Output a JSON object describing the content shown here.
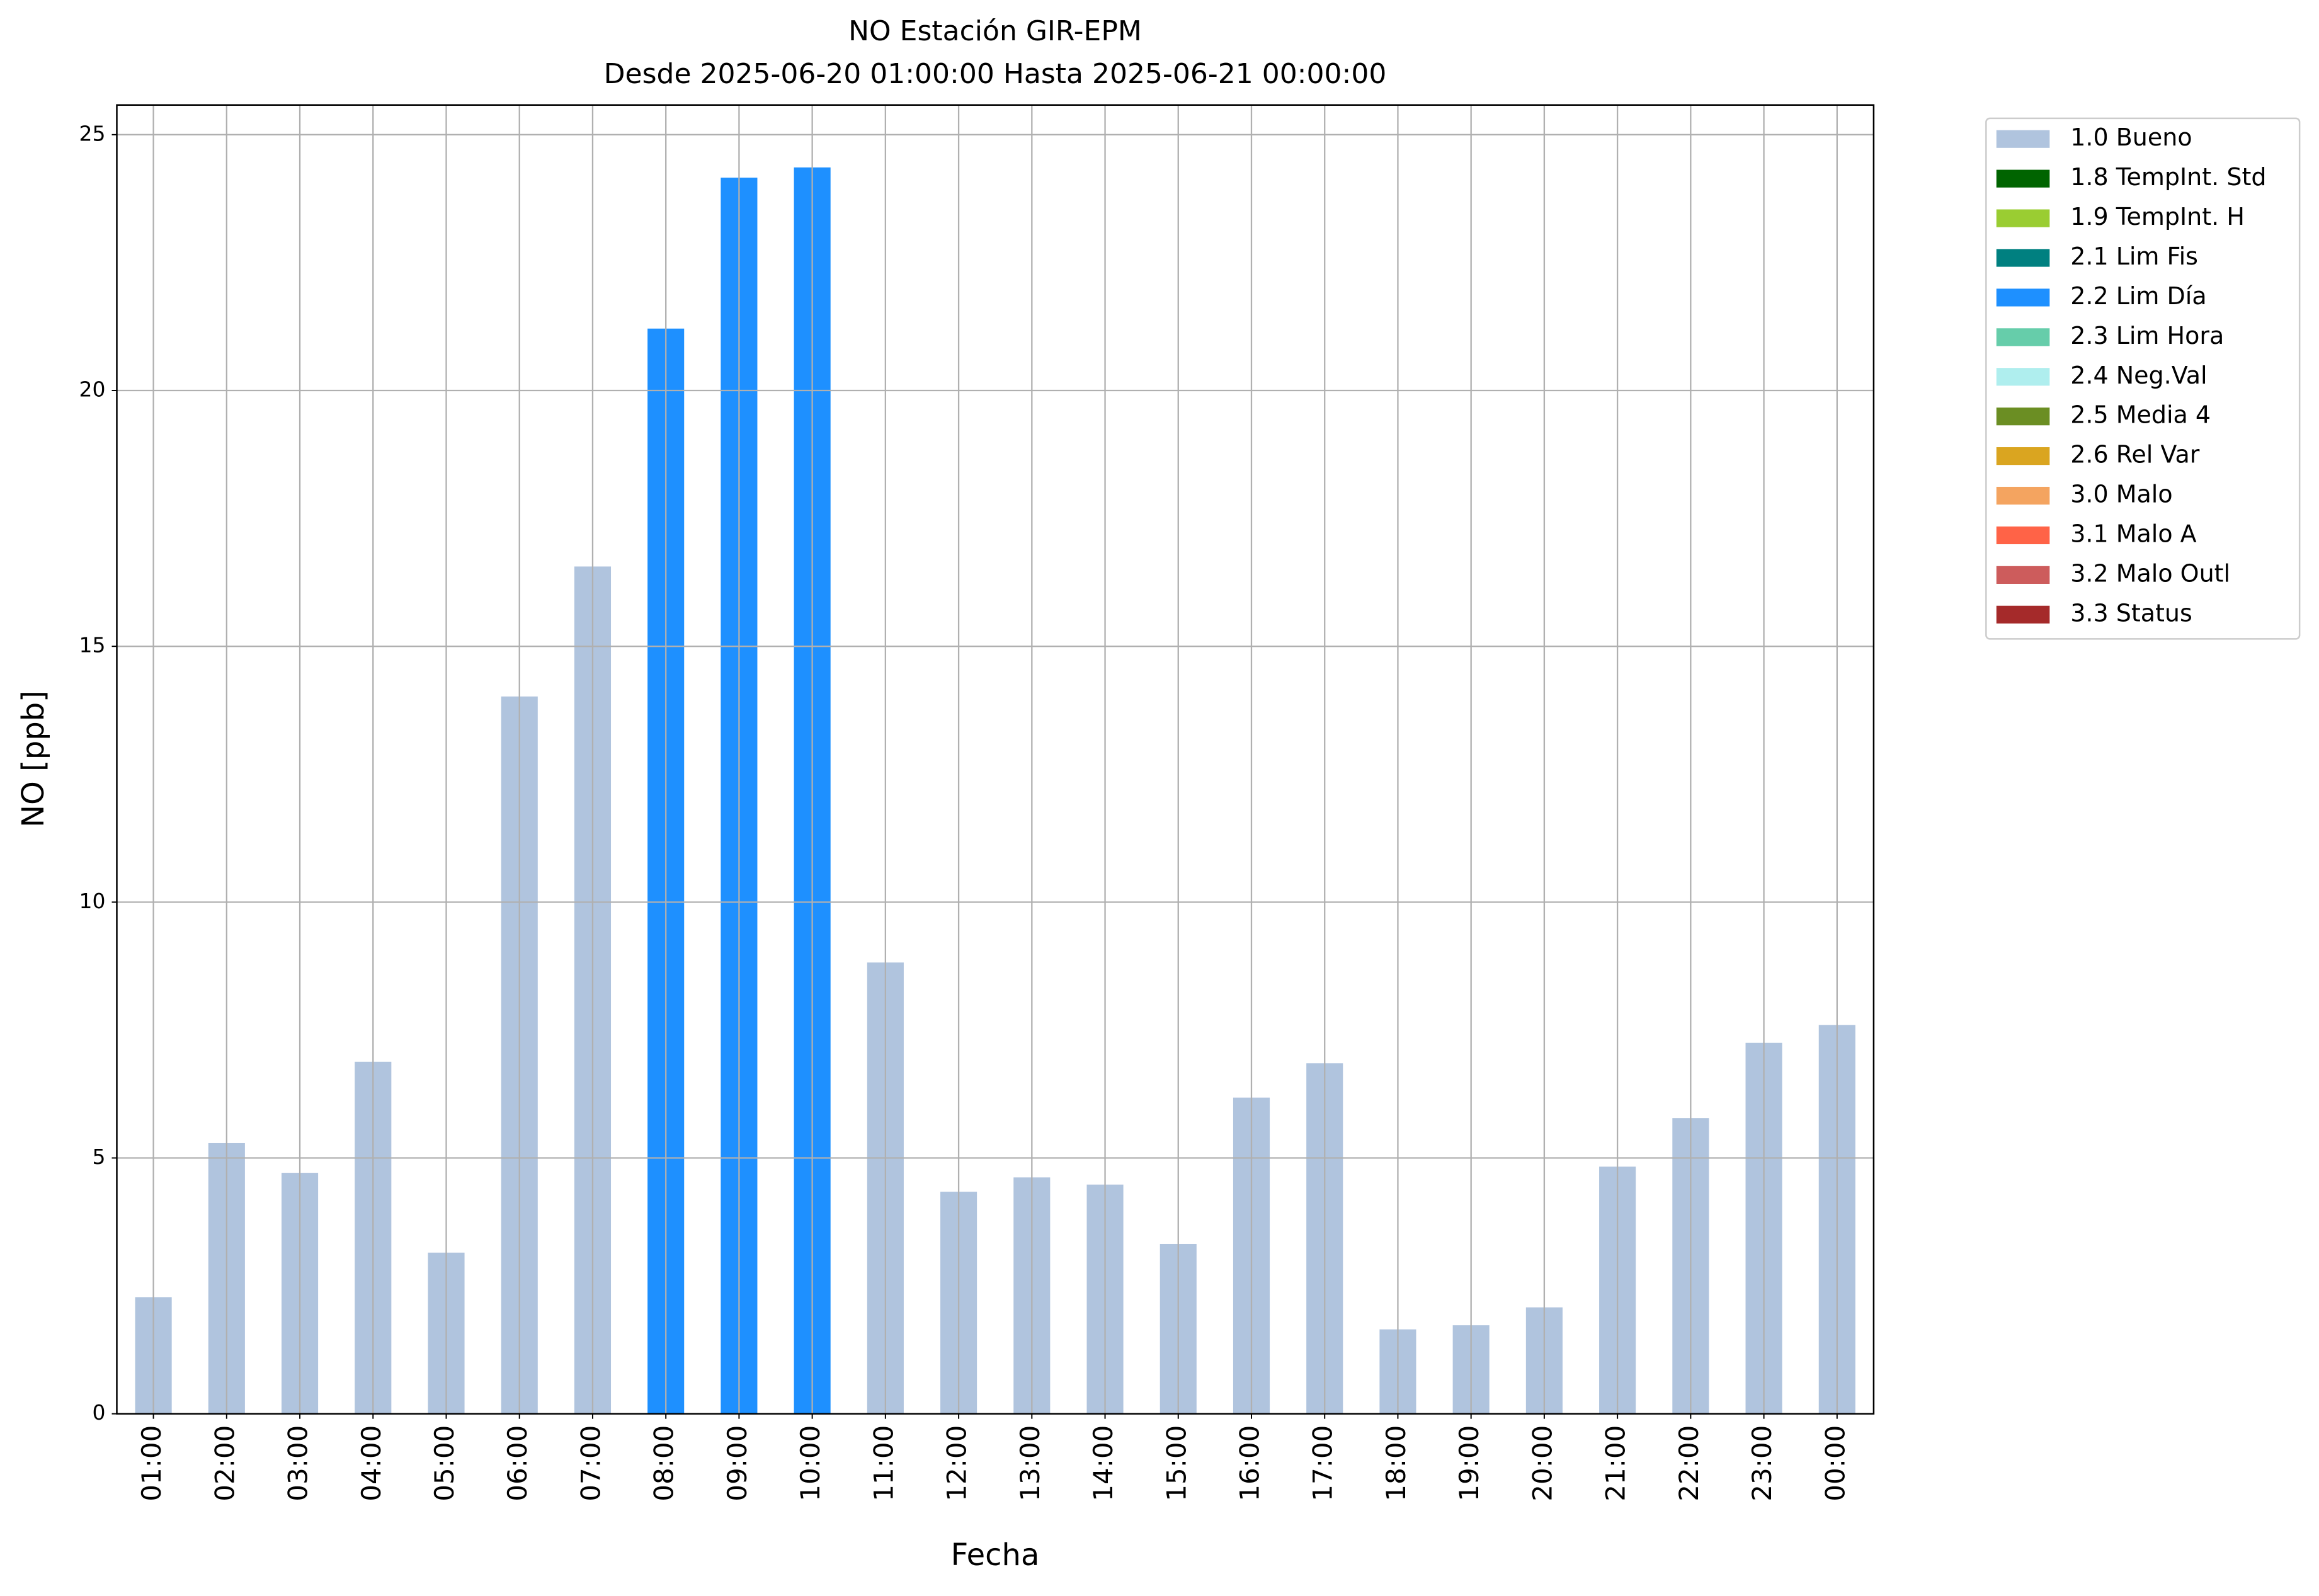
{
  "chart_data": {
    "type": "bar",
    "title": "NO Estación GIR-EPM",
    "subtitle": "Desde 2025-06-20 01:00:00 Hasta 2025-06-21 00:00:00",
    "x_label": "Fecha",
    "y_label": "NO [ppb]",
    "categories": [
      "01:00",
      "02:00",
      "03:00",
      "04:00",
      "05:00",
      "06:00",
      "07:00",
      "08:00",
      "09:00",
      "10:00",
      "11:00",
      "12:00",
      "13:00",
      "14:00",
      "15:00",
      "16:00",
      "17:00",
      "18:00",
      "19:00",
      "20:00",
      "21:00",
      "22:00",
      "23:00",
      "00:00"
    ],
    "series": [
      {
        "name": "1.0 Bueno",
        "color": "#b0c4de",
        "values": [
          2.28,
          5.29,
          4.71,
          6.88,
          3.15,
          14.02,
          16.56,
          null,
          null,
          null,
          8.82,
          4.34,
          4.62,
          4.48,
          3.32,
          6.18,
          6.85,
          1.65,
          1.73,
          2.08,
          4.83,
          5.78,
          7.25,
          7.6
        ]
      },
      {
        "name": "1.8 TempInt. Std",
        "color": "#006400",
        "values": [
          null,
          null,
          null,
          null,
          null,
          null,
          null,
          null,
          null,
          null,
          null,
          null,
          null,
          null,
          null,
          null,
          null,
          null,
          null,
          null,
          null,
          null,
          null,
          null
        ]
      },
      {
        "name": "1.9 TempInt. H",
        "color": "#9acd32",
        "values": [
          null,
          null,
          null,
          null,
          null,
          null,
          null,
          null,
          null,
          null,
          null,
          null,
          null,
          null,
          null,
          null,
          null,
          null,
          null,
          null,
          null,
          null,
          null,
          null
        ]
      },
      {
        "name": "2.1 Lim Fis",
        "color": "#008080",
        "values": [
          null,
          null,
          null,
          null,
          null,
          null,
          null,
          null,
          null,
          null,
          null,
          null,
          null,
          null,
          null,
          null,
          null,
          null,
          null,
          null,
          null,
          null,
          null,
          null
        ]
      },
      {
        "name": "2.2 Lim Día",
        "color": "#1e90ff",
        "values": [
          null,
          null,
          null,
          null,
          null,
          null,
          null,
          21.21,
          24.16,
          24.36,
          null,
          null,
          null,
          null,
          null,
          null,
          null,
          null,
          null,
          null,
          null,
          null,
          null,
          null
        ]
      },
      {
        "name": "2.3 Lim Hora",
        "color": "#66cdaa",
        "values": [
          null,
          null,
          null,
          null,
          null,
          null,
          null,
          null,
          null,
          null,
          null,
          null,
          null,
          null,
          null,
          null,
          null,
          null,
          null,
          null,
          null,
          null,
          null,
          null
        ]
      },
      {
        "name": "2.4 Neg.Val",
        "color": "#afeeee",
        "values": [
          null,
          null,
          null,
          null,
          null,
          null,
          null,
          null,
          null,
          null,
          null,
          null,
          null,
          null,
          null,
          null,
          null,
          null,
          null,
          null,
          null,
          null,
          null,
          null
        ]
      },
      {
        "name": "2.5 Media 4",
        "color": "#6b8e23",
        "values": [
          null,
          null,
          null,
          null,
          null,
          null,
          null,
          null,
          null,
          null,
          null,
          null,
          null,
          null,
          null,
          null,
          null,
          null,
          null,
          null,
          null,
          null,
          null,
          null
        ]
      },
      {
        "name": "2.6 Rel Var",
        "color": "#daa520",
        "values": [
          null,
          null,
          null,
          null,
          null,
          null,
          null,
          null,
          null,
          null,
          null,
          null,
          null,
          null,
          null,
          null,
          null,
          null,
          null,
          null,
          null,
          null,
          null,
          null
        ]
      },
      {
        "name": "3.0 Malo",
        "color": "#f4a460",
        "values": [
          null,
          null,
          null,
          null,
          null,
          null,
          null,
          null,
          null,
          null,
          null,
          null,
          null,
          null,
          null,
          null,
          null,
          null,
          null,
          null,
          null,
          null,
          null,
          null
        ]
      },
      {
        "name": "3.1 Malo A",
        "color": "#ff6347",
        "values": [
          null,
          null,
          null,
          null,
          null,
          null,
          null,
          null,
          null,
          null,
          null,
          null,
          null,
          null,
          null,
          null,
          null,
          null,
          null,
          null,
          null,
          null,
          null,
          null
        ]
      },
      {
        "name": "3.2 Malo Outl",
        "color": "#cd5c5c",
        "values": [
          null,
          null,
          null,
          null,
          null,
          null,
          null,
          null,
          null,
          null,
          null,
          null,
          null,
          null,
          null,
          null,
          null,
          null,
          null,
          null,
          null,
          null,
          null,
          null
        ]
      },
      {
        "name": "3.3 Status",
        "color": "#a52a2a",
        "values": [
          null,
          null,
          null,
          null,
          null,
          null,
          null,
          null,
          null,
          null,
          null,
          null,
          null,
          null,
          null,
          null,
          null,
          null,
          null,
          null,
          null,
          null,
          null,
          null
        ]
      }
    ],
    "ylim": [
      0,
      25.58
    ],
    "yticks": [
      0,
      5,
      10,
      15,
      20,
      25
    ],
    "grid": true,
    "legend": "outside-upper-right"
  }
}
